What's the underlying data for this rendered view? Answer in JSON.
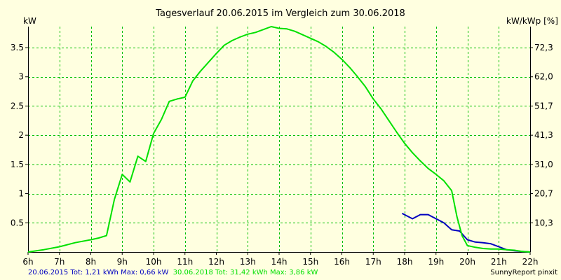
{
  "chart_data": {
    "type": "line",
    "title": "Tagesverlauf 20.06.2015 im Vergleich zum 30.06.2018",
    "ylabel_left": "kW",
    "ylabel_right": "kW/kWp [%]",
    "xlim": [
      6,
      22
    ],
    "ylim": [
      0,
      3.86
    ],
    "x_tick_values": [
      6,
      7,
      8,
      9,
      10,
      11,
      12,
      13,
      14,
      15,
      16,
      17,
      18,
      19,
      20,
      21,
      22
    ],
    "x_tick_labels": [
      "6h",
      "7h",
      "8h",
      "9h",
      "10h",
      "11h",
      "12h",
      "13h",
      "14h",
      "15h",
      "16h",
      "17h",
      "18h",
      "19h",
      "20h",
      "21h",
      "22h"
    ],
    "y_left_ticks": [
      0.5,
      1,
      1.5,
      2,
      2.5,
      3,
      3.5
    ],
    "y_left_tick_labels": [
      "0.5",
      "1",
      "1.5",
      "2",
      "2.5",
      "3",
      "3.5"
    ],
    "y_right_ticks": [
      10.3,
      20.7,
      31.0,
      41.3,
      51.7,
      62.0,
      72.3
    ],
    "y_right_tick_labels": [
      "10,3",
      "20,7",
      "31,0",
      "41,3",
      "51,7",
      "62,0",
      "72,3"
    ],
    "grid": true,
    "series": [
      {
        "name": "20.06.2015",
        "color": "#0000c0",
        "x": [
          17.92,
          18.25,
          18.5,
          18.75,
          19.0,
          19.25,
          19.5,
          19.75,
          20.0,
          20.25,
          20.5,
          20.75,
          21.0,
          21.25,
          21.5,
          21.75,
          22.0
        ],
        "y": [
          0.66,
          0.57,
          0.64,
          0.64,
          0.57,
          0.5,
          0.38,
          0.36,
          0.21,
          0.17,
          0.16,
          0.14,
          0.09,
          0.04,
          0.02,
          0.01,
          0.0
        ]
      },
      {
        "name": "30.06.2018",
        "color": "#00e000",
        "x": [
          6.0,
          6.5,
          7.0,
          7.5,
          8.0,
          8.25,
          8.5,
          8.75,
          9.0,
          9.25,
          9.5,
          9.75,
          10.0,
          10.25,
          10.5,
          10.75,
          11.0,
          11.25,
          11.5,
          11.75,
          12.0,
          12.25,
          12.5,
          12.75,
          13.0,
          13.25,
          13.5,
          13.75,
          14.0,
          14.25,
          14.5,
          14.75,
          15.0,
          15.25,
          15.5,
          15.75,
          16.0,
          16.25,
          16.5,
          16.75,
          17.0,
          17.25,
          17.5,
          17.75,
          18.0,
          18.25,
          18.5,
          18.75,
          19.0,
          19.25,
          19.5,
          19.67,
          19.83,
          20.0,
          20.25,
          20.5,
          20.75,
          21.0,
          21.25,
          21.5,
          21.75,
          22.0
        ],
        "y": [
          0.0,
          0.04,
          0.09,
          0.16,
          0.21,
          0.24,
          0.28,
          0.9,
          1.33,
          1.2,
          1.64,
          1.55,
          2.03,
          2.27,
          2.58,
          2.62,
          2.65,
          2.93,
          3.1,
          3.25,
          3.4,
          3.54,
          3.62,
          3.68,
          3.73,
          3.76,
          3.81,
          3.86,
          3.83,
          3.82,
          3.78,
          3.72,
          3.66,
          3.6,
          3.52,
          3.42,
          3.3,
          3.16,
          3.0,
          2.83,
          2.62,
          2.45,
          2.25,
          2.05,
          1.86,
          1.7,
          1.56,
          1.43,
          1.33,
          1.22,
          1.05,
          0.6,
          0.28,
          0.11,
          0.08,
          0.06,
          0.05,
          0.05,
          0.04,
          0.03,
          0.01,
          0.0
        ]
      }
    ]
  },
  "footer": {
    "legend_2015": "20.06.2015 Tot: 1,21 kWh Max: 0,66 kW",
    "legend_2018": "30.06.2018 Tot: 31,42 kWh Max: 3,86 kW",
    "credit": "SunnyReport pinxit",
    "color_2015": "#0000c0",
    "color_2018": "#00e000"
  },
  "colors": {
    "background": "#ffffe0",
    "grid": "#00c000",
    "axes": "#000000"
  }
}
